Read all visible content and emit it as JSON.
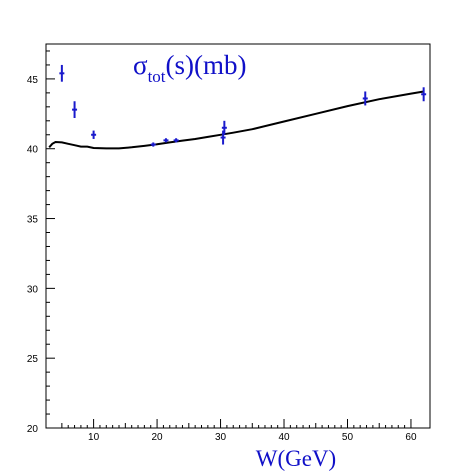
{
  "chart_data": {
    "type": "scatter",
    "title_parts": {
      "symbol": "σ",
      "subscript": "tot",
      "rest": "(s)(mb)"
    },
    "title_color": "#1010c8",
    "xlabel": "W(GeV)",
    "ylabel": "",
    "xlim": [
      2.5,
      63
    ],
    "ylim": [
      20,
      47.5
    ],
    "xticks": [
      10,
      20,
      30,
      40,
      50,
      60
    ],
    "yticks": [
      20,
      25,
      30,
      35,
      40,
      45
    ],
    "xtick_labels": [
      "10",
      "20",
      "30",
      "40",
      "50",
      "60"
    ],
    "ytick_labels": [
      "20",
      "25",
      "30",
      "35",
      "40",
      "45"
    ],
    "grid": false,
    "legend": "none",
    "series": [
      {
        "kind": "points",
        "color": "#1a1acc",
        "points": [
          {
            "x": 5.0,
            "y": 45.4,
            "err": 0.6
          },
          {
            "x": 7.0,
            "y": 42.8,
            "err": 0.6
          },
          {
            "x": 10.0,
            "y": 41.0,
            "err": 0.3
          },
          {
            "x": 19.4,
            "y": 40.3,
            "err": 0.15
          },
          {
            "x": 21.4,
            "y": 40.6,
            "err": 0.15
          },
          {
            "x": 23.0,
            "y": 40.6,
            "err": 0.15
          },
          {
            "x": 30.4,
            "y": 40.8,
            "err": 0.5
          },
          {
            "x": 30.6,
            "y": 41.5,
            "err": 0.5
          },
          {
            "x": 52.8,
            "y": 43.6,
            "err": 0.5
          },
          {
            "x": 62.0,
            "y": 43.9,
            "err": 0.5
          }
        ]
      },
      {
        "kind": "curve",
        "color": "#000000",
        "x": [
          3.0,
          3.5,
          4.0,
          5.0,
          6.0,
          7.0,
          8.0,
          9.0,
          10.0,
          12.0,
          14.0,
          16.0,
          18.0,
          20.0,
          22.0,
          24.0,
          26.0,
          28.0,
          30.0,
          32.0,
          35.0,
          40.0,
          45.0,
          50.0,
          55.0,
          60.0,
          62.0
        ],
        "y": [
          40.1,
          40.35,
          40.48,
          40.45,
          40.35,
          40.25,
          40.15,
          40.15,
          40.05,
          40.02,
          40.02,
          40.1,
          40.2,
          40.32,
          40.45,
          40.58,
          40.7,
          40.85,
          41.0,
          41.15,
          41.4,
          41.95,
          42.5,
          43.05,
          43.55,
          43.95,
          44.1
        ]
      }
    ]
  }
}
